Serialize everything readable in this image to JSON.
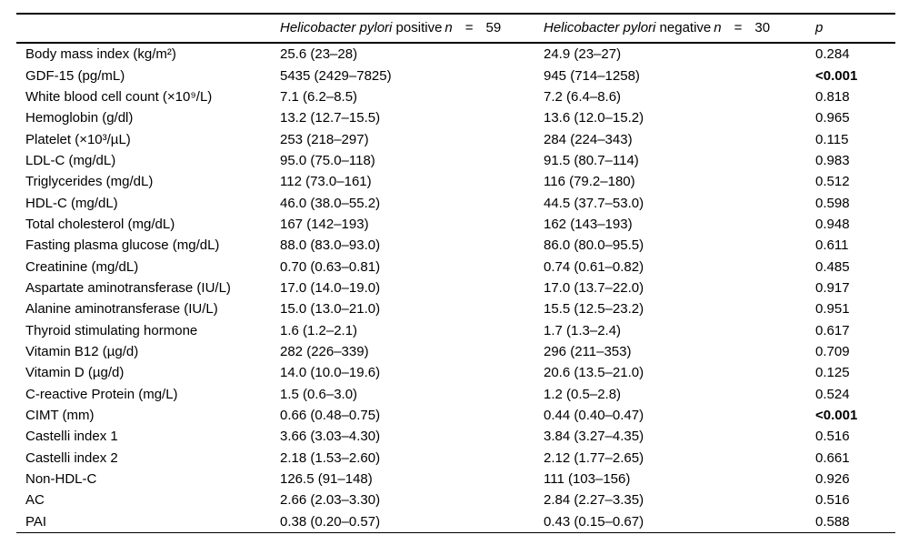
{
  "table": {
    "header": {
      "group_positive": {
        "species": "Helicobacter pylori",
        "status": " positive",
        "n_label": "n",
        "equals": "=",
        "n_value": "59"
      },
      "group_negative": {
        "species": "Helicobacter pylori",
        "status": " negative",
        "n_label": "n",
        "equals": "=",
        "n_value": "30"
      },
      "p_label": "p"
    },
    "rows": [
      {
        "label": "Body mass index (kg/m²)",
        "positive": "25.6 (23–28)",
        "negative": "24.9 (23–27)",
        "p": "0.284",
        "p_bold": false
      },
      {
        "label": "GDF-15 (pg/mL)",
        "positive": "5435 (2429–7825)",
        "negative": "945 (714–1258)",
        "p": "<0.001",
        "p_bold": true
      },
      {
        "label": "White blood cell count (×10⁹/L)",
        "positive": "7.1 (6.2–8.5)",
        "negative": "7.2 (6.4–8.6)",
        "p": "0.818",
        "p_bold": false
      },
      {
        "label": "Hemoglobin (g/dl)",
        "positive": "13.2 (12.7–15.5)",
        "negative": "13.6 (12.0–15.2)",
        "p": "0.965",
        "p_bold": false
      },
      {
        "label": "Platelet (×10³/µL)",
        "positive": "253 (218–297)",
        "negative": "284 (224–343)",
        "p": "0.115",
        "p_bold": false
      },
      {
        "label": "LDL-C (mg/dL)",
        "positive": "95.0 (75.0–118)",
        "negative": "91.5 (80.7–114)",
        "p": "0.983",
        "p_bold": false
      },
      {
        "label": "Triglycerides (mg/dL)",
        "positive": "112 (73.0–161)",
        "negative": "116 (79.2–180)",
        "p": "0.512",
        "p_bold": false
      },
      {
        "label": "HDL-C (mg/dL)",
        "positive": "46.0 (38.0–55.2)",
        "negative": "44.5 (37.7–53.0)",
        "p": "0.598",
        "p_bold": false
      },
      {
        "label": "Total cholesterol (mg/dL)",
        "positive": "167 (142–193)",
        "negative": "162 (143–193)",
        "p": "0.948",
        "p_bold": false
      },
      {
        "label": "Fasting plasma glucose (mg/dL)",
        "positive": "88.0 (83.0–93.0)",
        "negative": "86.0 (80.0–95.5)",
        "p": "0.611",
        "p_bold": false
      },
      {
        "label": "Creatinine (mg/dL)",
        "positive": "0.70 (0.63–0.81)",
        "negative": "0.74 (0.61–0.82)",
        "p": "0.485",
        "p_bold": false
      },
      {
        "label": "Aspartate aminotransferase (IU/L)",
        "positive": "17.0 (14.0–19.0)",
        "negative": "17.0 (13.7–22.0)",
        "p": "0.917",
        "p_bold": false
      },
      {
        "label": "Alanine aminotransferase (IU/L)",
        "positive": "15.0 (13.0–21.0)",
        "negative": "15.5 (12.5–23.2)",
        "p": "0.951",
        "p_bold": false
      },
      {
        "label": "Thyroid stimulating hormone",
        "positive": "1.6 (1.2–2.1)",
        "negative": "1.7 (1.3–2.4)",
        "p": "0.617",
        "p_bold": false
      },
      {
        "label": "Vitamin B12 (µg/d)",
        "positive": "282 (226–339)",
        "negative": "296 (211–353)",
        "p": "0.709",
        "p_bold": false
      },
      {
        "label": "Vitamin D (µg/d)",
        "positive": "14.0 (10.0–19.6)",
        "negative": "20.6 (13.5–21.0)",
        "p": "0.125",
        "p_bold": false
      },
      {
        "label": "C-reactive Protein (mg/L)",
        "positive": "1.5 (0.6–3.0)",
        "negative": "1.2 (0.5–2.8)",
        "p": "0.524",
        "p_bold": false
      },
      {
        "label": "CIMT (mm)",
        "positive": "0.66 (0.48–0.75)",
        "negative": "0.44 (0.40–0.47)",
        "p": "<0.001",
        "p_bold": true
      },
      {
        "label": "Castelli index 1",
        "positive": "3.66 (3.03–4.30)",
        "negative": "3.84 (3.27–4.35)",
        "p": "0.516",
        "p_bold": false
      },
      {
        "label": "Castelli index 2",
        "positive": "2.18 (1.53–2.60)",
        "negative": "2.12 (1.77–2.65)",
        "p": "0.661",
        "p_bold": false
      },
      {
        "label": "Non-HDL-C",
        "positive": "126.5 (91–148)",
        "negative": "111 (103–156)",
        "p": "0.926",
        "p_bold": false
      },
      {
        "label": "AC",
        "positive": "2.66 (2.03–3.30)",
        "negative": "2.84 (2.27–3.35)",
        "p": "0.516",
        "p_bold": false
      },
      {
        "label": "PAI",
        "positive": "0.38 (0.20–0.57)",
        "negative": "0.43 (0.15–0.67)",
        "p": "0.588",
        "p_bold": false
      }
    ]
  }
}
